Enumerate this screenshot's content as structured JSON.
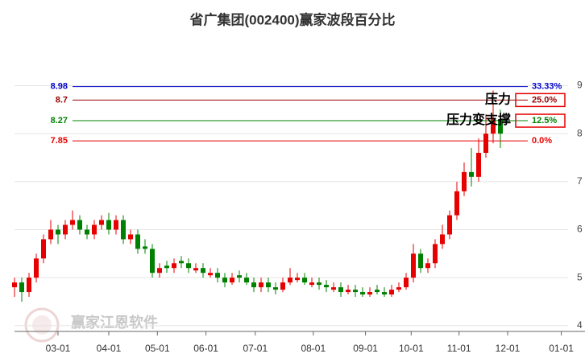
{
  "chart_data": {
    "type": "candlestick",
    "title": "省广集团(002400)赢家波段百分比",
    "watermark": "赢家江恩软件",
    "up_color": "#e60000",
    "down_color": "#008000",
    "x": [
      0,
      1,
      2,
      3,
      4,
      5,
      6,
      7,
      8,
      9,
      10,
      11,
      12,
      13,
      14,
      15,
      16,
      17,
      18,
      19,
      20,
      21,
      22,
      23,
      24,
      25,
      26,
      27,
      28,
      29,
      30,
      31,
      32,
      33,
      34,
      35,
      36,
      37,
      38,
      39,
      40,
      41,
      42,
      43,
      44,
      45,
      46,
      47,
      48,
      49,
      50,
      51,
      52,
      53,
      54,
      55,
      56,
      57,
      58,
      59,
      60,
      61,
      62,
      63,
      64,
      65,
      66,
      67
    ],
    "open": [
      4.8,
      4.9,
      4.7,
      5.0,
      5.4,
      5.8,
      6.0,
      5.9,
      6.1,
      6.2,
      6.0,
      5.9,
      6.1,
      6.2,
      6.0,
      6.2,
      5.8,
      5.9,
      5.65,
      5.6,
      5.1,
      5.25,
      5.2,
      5.35,
      5.3,
      5.15,
      5.2,
      5.05,
      5.1,
      5.0,
      4.9,
      5.05,
      5.0,
      4.9,
      4.8,
      4.9,
      4.8,
      4.75,
      4.9,
      4.95,
      5.0,
      4.85,
      4.9,
      4.85,
      4.75,
      4.8,
      4.7,
      4.75,
      4.7,
      4.65,
      4.75,
      4.7,
      4.65,
      4.75,
      4.8,
      5.0,
      5.5,
      5.2,
      5.3,
      5.7,
      5.9,
      6.3,
      6.8,
      7.2,
      7.1,
      7.6,
      8.0,
      8.3
    ],
    "high": [
      5.0,
      5.0,
      5.1,
      5.5,
      5.9,
      6.2,
      6.1,
      6.2,
      6.4,
      6.3,
      6.1,
      6.2,
      6.3,
      6.35,
      6.3,
      6.3,
      6.0,
      6.0,
      5.8,
      5.7,
      5.3,
      5.35,
      5.4,
      5.45,
      5.4,
      5.3,
      5.3,
      5.2,
      5.2,
      5.1,
      5.1,
      5.15,
      5.1,
      5.0,
      5.0,
      5.0,
      4.9,
      5.0,
      5.2,
      5.1,
      5.1,
      5.0,
      5.0,
      4.95,
      4.9,
      4.9,
      4.85,
      4.85,
      4.8,
      4.8,
      4.85,
      4.8,
      4.85,
      4.9,
      5.1,
      5.7,
      5.6,
      5.4,
      5.8,
      6.1,
      6.4,
      7.0,
      7.4,
      7.7,
      7.9,
      8.4,
      8.9,
      8.5
    ],
    "low": [
      4.6,
      4.5,
      4.6,
      4.9,
      5.3,
      5.7,
      5.7,
      5.8,
      6.0,
      5.9,
      5.8,
      5.8,
      6.0,
      5.9,
      5.9,
      5.7,
      5.7,
      5.5,
      5.5,
      5.0,
      5.0,
      5.1,
      5.1,
      5.2,
      5.1,
      5.1,
      5.0,
      5.0,
      4.9,
      4.8,
      4.85,
      4.9,
      4.85,
      4.7,
      4.7,
      4.7,
      4.65,
      4.7,
      4.85,
      4.9,
      4.85,
      4.8,
      4.75,
      4.7,
      4.7,
      4.6,
      4.65,
      4.6,
      4.6,
      4.6,
      4.65,
      4.6,
      4.6,
      4.7,
      4.75,
      4.9,
      5.1,
      5.1,
      5.2,
      5.6,
      5.8,
      6.2,
      6.7,
      6.9,
      7.0,
      7.5,
      7.8,
      7.7
    ],
    "close": [
      4.9,
      4.7,
      5.0,
      5.4,
      5.8,
      6.0,
      5.9,
      6.1,
      6.2,
      6.0,
      5.9,
      6.1,
      6.2,
      6.0,
      6.2,
      5.8,
      5.9,
      5.6,
      5.6,
      5.1,
      5.2,
      5.2,
      5.3,
      5.3,
      5.2,
      5.2,
      5.1,
      5.1,
      5.0,
      4.9,
      5.0,
      5.0,
      4.9,
      4.8,
      4.9,
      4.8,
      4.75,
      4.9,
      5.0,
      5.0,
      4.9,
      4.9,
      4.85,
      4.8,
      4.8,
      4.7,
      4.75,
      4.7,
      4.65,
      4.7,
      4.7,
      4.65,
      4.75,
      4.8,
      5.0,
      5.5,
      5.2,
      5.3,
      5.7,
      5.9,
      6.3,
      6.8,
      7.2,
      7.1,
      7.6,
      8.0,
      8.3,
      8.0
    ],
    "xlim": [
      0,
      78
    ],
    "xticks": [
      {
        "value": 6,
        "label": "03-01"
      },
      {
        "value": 13,
        "label": "04-01"
      },
      {
        "value": 19.7,
        "label": "05-01"
      },
      {
        "value": 26.4,
        "label": "06-01"
      },
      {
        "value": 33.2,
        "label": "07-01"
      },
      {
        "value": 41.2,
        "label": "08-01"
      },
      {
        "value": 48.4,
        "label": "09-01"
      },
      {
        "value": 54.7,
        "label": "10-01"
      },
      {
        "value": 61.3,
        "label": "11-01"
      },
      {
        "value": 68,
        "label": "12-01"
      },
      {
        "value": 75.4,
        "label": "01-01"
      }
    ],
    "ylim": [
      3.88,
      10.03
    ],
    "yticks": [
      4,
      5,
      6,
      7,
      8,
      9
    ],
    "levels": [
      {
        "value": 8.98,
        "percent": "33.33%",
        "color": "#0000cc",
        "boxed": false
      },
      {
        "value": 8.7,
        "percent": "25.0%",
        "color": "#990000",
        "boxed": true
      },
      {
        "value": 8.27,
        "percent": "12.5%",
        "color": "#008000",
        "boxed": true
      },
      {
        "value": 7.85,
        "percent": "0.0%",
        "color": "#e60000",
        "boxed": false
      }
    ],
    "annotations": [
      {
        "text": "压力",
        "level": 1
      },
      {
        "text": "压力变支撑",
        "level": 2
      }
    ]
  }
}
